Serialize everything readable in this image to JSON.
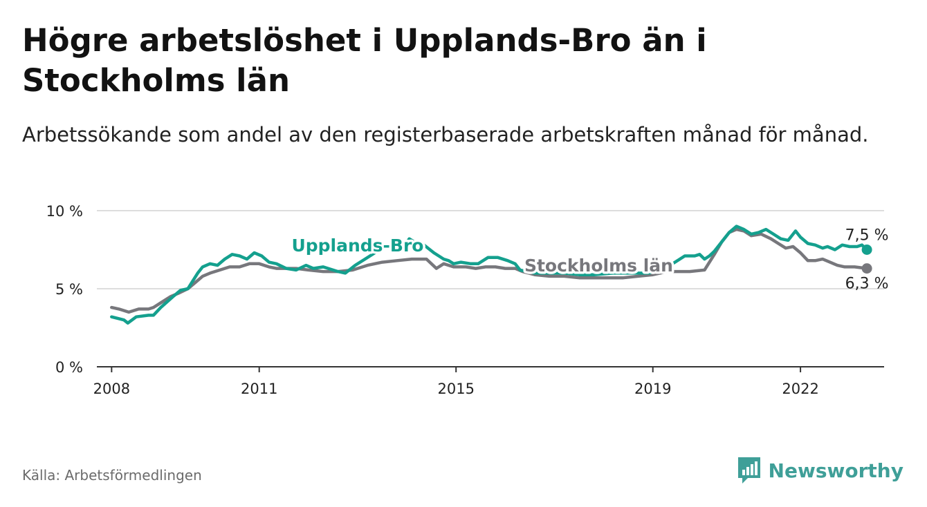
{
  "header": {
    "title": "Högre arbetslöshet i Upplands-Bro än i Stockholms län",
    "subtitle": "Arbetssökande som andel av den registerbaserade arbetskraften månad för månad."
  },
  "footer": {
    "source": "Källa: Arbetsförmedlingen",
    "brand": "Newsworthy",
    "brand_icon": "bar-chart-logo-icon"
  },
  "colors": {
    "upplands": "#14a08e",
    "stockholm": "#77777c",
    "grid": "#dddddd",
    "axis": "#333333",
    "text": "#222222",
    "brand": "#3f9f98"
  },
  "chart_data": {
    "type": "line",
    "title": "Högre arbetslöshet i Upplands-Bro än i Stockholms län",
    "subtitle": "Arbetssökande som andel av den registerbaserade arbetskraften månad för månad.",
    "xlabel": "",
    "ylabel": "",
    "xlim": [
      2007.7,
      2023.7
    ],
    "ylim": [
      0,
      10
    ],
    "grid": true,
    "yticks": [
      {
        "value": 0,
        "label": "0 %"
      },
      {
        "value": 5,
        "label": "5 %"
      },
      {
        "value": 10,
        "label": "10 %"
      }
    ],
    "xticks": [
      {
        "value": 2008,
        "label": "2008"
      },
      {
        "value": 2011,
        "label": "2011"
      },
      {
        "value": 2015,
        "label": "2015"
      },
      {
        "value": 2019,
        "label": "2019"
      },
      {
        "value": 2022,
        "label": "2022"
      }
    ],
    "series": [
      {
        "name": "Upplands-Bro",
        "key": "upplands",
        "end_label": "7,5 %",
        "points": [
          [
            2008.0,
            3.2
          ],
          [
            2008.25,
            3.0
          ],
          [
            2008.33,
            2.8
          ],
          [
            2008.5,
            3.2
          ],
          [
            2008.75,
            3.3
          ],
          [
            2008.85,
            3.3
          ],
          [
            2009.0,
            3.8
          ],
          [
            2009.25,
            4.5
          ],
          [
            2009.4,
            4.9
          ],
          [
            2009.55,
            5.0
          ],
          [
            2009.65,
            5.5
          ],
          [
            2009.75,
            6.0
          ],
          [
            2009.85,
            6.4
          ],
          [
            2010.0,
            6.6
          ],
          [
            2010.15,
            6.5
          ],
          [
            2010.3,
            6.9
          ],
          [
            2010.45,
            7.2
          ],
          [
            2010.6,
            7.1
          ],
          [
            2010.75,
            6.9
          ],
          [
            2010.9,
            7.3
          ],
          [
            2011.05,
            7.1
          ],
          [
            2011.2,
            6.7
          ],
          [
            2011.35,
            6.6
          ],
          [
            2011.55,
            6.3
          ],
          [
            2011.75,
            6.2
          ],
          [
            2011.95,
            6.5
          ],
          [
            2012.1,
            6.3
          ],
          [
            2012.3,
            6.4
          ],
          [
            2012.6,
            6.1
          ],
          [
            2012.75,
            6.0
          ],
          [
            2012.95,
            6.5
          ],
          [
            2013.15,
            6.9
          ],
          [
            2013.35,
            7.3
          ],
          [
            2013.55,
            7.6
          ],
          [
            2013.75,
            7.6
          ],
          [
            2013.95,
            7.7
          ],
          [
            2014.05,
            8.2
          ],
          [
            2014.2,
            7.9
          ],
          [
            2014.35,
            7.8
          ],
          [
            2014.55,
            7.3
          ],
          [
            2014.75,
            6.9
          ],
          [
            2014.85,
            6.8
          ],
          [
            2014.95,
            6.6
          ],
          [
            2015.1,
            6.7
          ],
          [
            2015.3,
            6.6
          ],
          [
            2015.45,
            6.6
          ],
          [
            2015.65,
            7.0
          ],
          [
            2015.85,
            7.0
          ],
          [
            2016.05,
            6.8
          ],
          [
            2016.2,
            6.6
          ],
          [
            2016.3,
            6.2
          ],
          [
            2016.6,
            6.0
          ],
          [
            2016.9,
            6.0
          ],
          [
            2017.2,
            6.0
          ],
          [
            2017.5,
            5.9
          ],
          [
            2017.8,
            5.9
          ],
          [
            2018.2,
            6.0
          ],
          [
            2018.6,
            6.0
          ],
          [
            2018.9,
            6.0
          ],
          [
            2019.2,
            6.2
          ],
          [
            2019.45,
            6.7
          ],
          [
            2019.65,
            7.1
          ],
          [
            2019.85,
            7.1
          ],
          [
            2019.95,
            7.2
          ],
          [
            2020.05,
            6.9
          ],
          [
            2020.15,
            7.1
          ],
          [
            2020.25,
            7.4
          ],
          [
            2020.4,
            8.0
          ],
          [
            2020.55,
            8.6
          ],
          [
            2020.7,
            9.0
          ],
          [
            2020.85,
            8.8
          ],
          [
            2021.0,
            8.5
          ],
          [
            2021.15,
            8.6
          ],
          [
            2021.3,
            8.8
          ],
          [
            2021.45,
            8.5
          ],
          [
            2021.6,
            8.2
          ],
          [
            2021.75,
            8.1
          ],
          [
            2021.9,
            8.7
          ],
          [
            2022.0,
            8.3
          ],
          [
            2022.15,
            7.9
          ],
          [
            2022.3,
            7.8
          ],
          [
            2022.45,
            7.6
          ],
          [
            2022.55,
            7.7
          ],
          [
            2022.7,
            7.5
          ],
          [
            2022.85,
            7.8
          ],
          [
            2023.0,
            7.7
          ],
          [
            2023.15,
            7.7
          ],
          [
            2023.25,
            7.8
          ],
          [
            2023.35,
            7.5
          ]
        ]
      },
      {
        "name": "Stockholms län",
        "key": "stockholm",
        "end_label": "6,3 %",
        "points": [
          [
            2008.0,
            3.8
          ],
          [
            2008.15,
            3.7
          ],
          [
            2008.35,
            3.5
          ],
          [
            2008.55,
            3.7
          ],
          [
            2008.75,
            3.7
          ],
          [
            2008.85,
            3.8
          ],
          [
            2009.0,
            4.1
          ],
          [
            2009.2,
            4.5
          ],
          [
            2009.35,
            4.7
          ],
          [
            2009.55,
            5.0
          ],
          [
            2009.7,
            5.4
          ],
          [
            2009.85,
            5.8
          ],
          [
            2010.0,
            6.0
          ],
          [
            2010.2,
            6.2
          ],
          [
            2010.4,
            6.4
          ],
          [
            2010.6,
            6.4
          ],
          [
            2010.8,
            6.6
          ],
          [
            2011.0,
            6.6
          ],
          [
            2011.2,
            6.4
          ],
          [
            2011.35,
            6.3
          ],
          [
            2011.55,
            6.3
          ],
          [
            2011.75,
            6.3
          ],
          [
            2012.0,
            6.2
          ],
          [
            2012.3,
            6.1
          ],
          [
            2012.6,
            6.1
          ],
          [
            2012.9,
            6.2
          ],
          [
            2013.2,
            6.5
          ],
          [
            2013.5,
            6.7
          ],
          [
            2013.8,
            6.8
          ],
          [
            2014.1,
            6.9
          ],
          [
            2014.4,
            6.9
          ],
          [
            2014.6,
            6.3
          ],
          [
            2014.75,
            6.6
          ],
          [
            2014.95,
            6.4
          ],
          [
            2015.2,
            6.4
          ],
          [
            2015.4,
            6.3
          ],
          [
            2015.6,
            6.4
          ],
          [
            2015.8,
            6.4
          ],
          [
            2016.0,
            6.3
          ],
          [
            2016.2,
            6.3
          ],
          [
            2016.35,
            6.1
          ],
          [
            2016.6,
            5.9
          ],
          [
            2016.9,
            5.8
          ],
          [
            2017.2,
            5.8
          ],
          [
            2017.5,
            5.7
          ],
          [
            2017.8,
            5.7
          ],
          [
            2018.1,
            5.7
          ],
          [
            2018.4,
            5.7
          ],
          [
            2018.7,
            5.8
          ],
          [
            2019.0,
            5.9
          ],
          [
            2019.3,
            6.1
          ],
          [
            2019.55,
            6.1
          ],
          [
            2019.75,
            6.1
          ],
          [
            2020.05,
            6.2
          ],
          [
            2020.25,
            7.2
          ],
          [
            2020.4,
            8.0
          ],
          [
            2020.55,
            8.6
          ],
          [
            2020.7,
            8.8
          ],
          [
            2020.85,
            8.7
          ],
          [
            2021.0,
            8.4
          ],
          [
            2021.2,
            8.5
          ],
          [
            2021.4,
            8.2
          ],
          [
            2021.55,
            7.9
          ],
          [
            2021.7,
            7.6
          ],
          [
            2021.85,
            7.7
          ],
          [
            2022.0,
            7.3
          ],
          [
            2022.15,
            6.8
          ],
          [
            2022.3,
            6.8
          ],
          [
            2022.45,
            6.9
          ],
          [
            2022.6,
            6.7
          ],
          [
            2022.75,
            6.5
          ],
          [
            2022.9,
            6.4
          ],
          [
            2023.1,
            6.4
          ],
          [
            2023.35,
            6.3
          ]
        ]
      }
    ],
    "annotations": [
      {
        "series": "upplands",
        "text": "Upplands-Bro",
        "x": 2013.0,
        "y": 7.4
      },
      {
        "series": "stockholm",
        "text": "Stockholms län",
        "x": 2017.9,
        "y": 6.1
      }
    ]
  }
}
